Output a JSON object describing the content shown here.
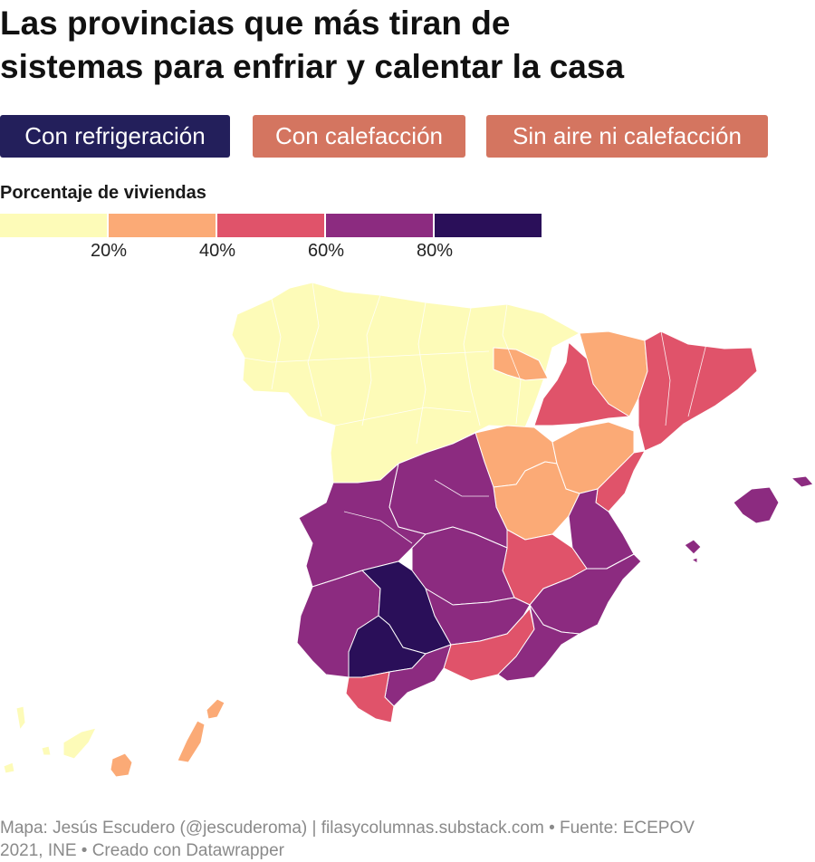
{
  "header": {
    "title_line1": "Las provincias que más tiran de",
    "title_line2": "sistemas para enfriar y calentar la casa"
  },
  "tabs": [
    {
      "label": "Con refrigeración",
      "active": true
    },
    {
      "label": "Con calefacción",
      "active": false
    },
    {
      "label": "Sin aire ni calefacción",
      "active": false
    }
  ],
  "colors": {
    "tab_active": "#231f5b",
    "tab_inactive": "#d47560",
    "bin_0_20": "#fdfbb8",
    "bin_20_40": "#fbaa76",
    "bin_40_60": "#e0536a",
    "bin_60_80": "#8c2b80",
    "bin_80_100": "#2a0f59"
  },
  "legend": {
    "title": "Porcentaje de viviendas",
    "ticks": [
      "20%",
      "40%",
      "60%",
      "80%"
    ]
  },
  "footer": {
    "line1": "Mapa: Jesús Escudero (@jescuderoma) | filasycolumnas.substack.com • Fuente: ECEPOV",
    "line2": "2021, INE • Creado con Datawrapper"
  }
}
